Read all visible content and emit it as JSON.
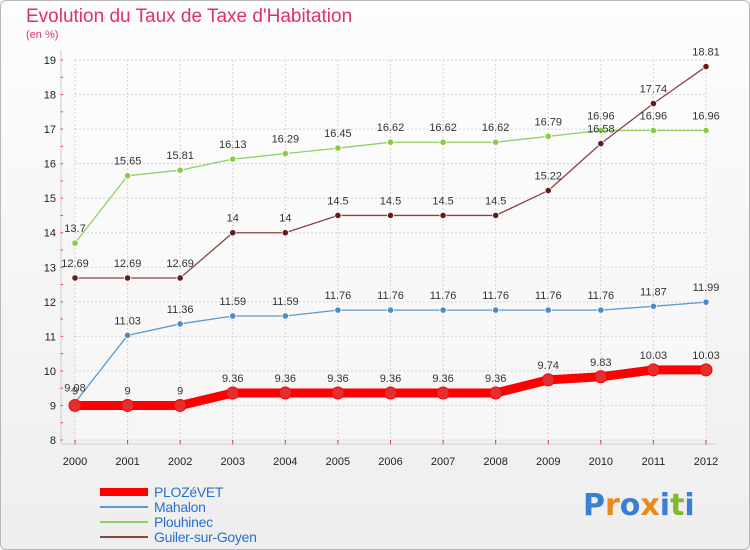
{
  "title": "Evolution du Taux de Taxe d'Habitation",
  "unit": "(en %)",
  "logo": {
    "text": "Proxiti",
    "letter_colors": [
      "#3a7fd6",
      "#ea8a1c",
      "#3a7fd6",
      "#ea8a1c",
      "#3a7fd6",
      "#7dbb2a",
      "#3a7fd6"
    ]
  },
  "chart_data": {
    "type": "line",
    "x": [
      "2000",
      "2001",
      "2002",
      "2003",
      "2004",
      "2005",
      "2006",
      "2007",
      "2008",
      "2009",
      "2010",
      "2011",
      "2012"
    ],
    "ylim": [
      8,
      19
    ],
    "yticks": [
      8,
      9,
      10,
      11,
      12,
      13,
      14,
      15,
      16,
      17,
      18,
      19
    ],
    "grid": true,
    "legend_position": "bottom-left",
    "series": [
      {
        "name": "PLOZéVET",
        "color": "#ff0000",
        "point_color": "#e03030",
        "values": [
          9,
          9,
          9,
          9.36,
          9.36,
          9.36,
          9.36,
          9.36,
          9.36,
          9.74,
          9.83,
          10.03,
          10.03
        ],
        "labels": [
          "9",
          "9",
          "9",
          "9.36",
          "9.36",
          "9.36",
          "9.36",
          "9.36",
          "9.36",
          "9.74",
          "9.83",
          "10.03",
          "10.03"
        ]
      },
      {
        "name": "Mahalon",
        "color": "#5a9ad0",
        "point_color": "#4a8cc8",
        "values": [
          9.08,
          11.03,
          11.36,
          11.59,
          11.59,
          11.76,
          11.76,
          11.76,
          11.76,
          11.76,
          11.76,
          11.87,
          11.99
        ],
        "labels": [
          "9.08",
          "11.03",
          "11.36",
          "11.59",
          "11.59",
          "11.76",
          "11.76",
          "11.76",
          "11.76",
          "11.76",
          "11.76",
          "11.87",
          "11.99"
        ]
      },
      {
        "name": "Plouhinec",
        "color": "#90d060",
        "point_color": "#88cc44",
        "values": [
          13.7,
          15.65,
          15.81,
          16.13,
          16.29,
          16.45,
          16.62,
          16.62,
          16.62,
          16.79,
          16.96,
          16.96,
          16.96
        ],
        "labels": [
          "13.7",
          "15.65",
          "15.81",
          "16.13",
          "16.29",
          "16.45",
          "16.62",
          "16.62",
          "16.62",
          "16.79",
          "16.96",
          "16.96",
          "16.96"
        ]
      },
      {
        "name": "Guiler-sur-Goyen",
        "color": "#884444",
        "point_color": "#661a1a",
        "values": [
          12.69,
          12.69,
          12.69,
          14,
          14,
          14.5,
          14.5,
          14.5,
          14.5,
          15.22,
          16.58,
          17.74,
          18.81
        ],
        "labels": [
          "12.69",
          "12.69",
          "12.69",
          "14",
          "14",
          "14.5",
          "14.5",
          "14.5",
          "14.5",
          "15.22",
          "16.58",
          "17.74",
          "18.81"
        ]
      }
    ]
  }
}
